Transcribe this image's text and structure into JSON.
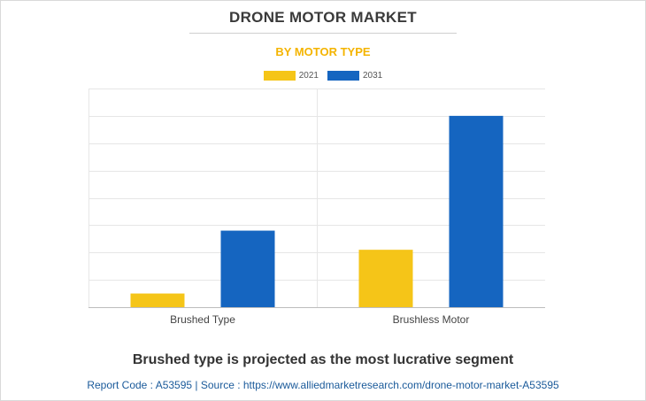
{
  "header": {
    "title": "DRONE MOTOR MARKET",
    "subtitle": "BY MOTOR TYPE"
  },
  "legend": {
    "items": [
      {
        "label": "2021",
        "color": "#f5c518"
      },
      {
        "label": "2031",
        "color": "#1565c0"
      }
    ]
  },
  "chart_data": {
    "type": "bar",
    "title": "DRONE MOTOR MARKET",
    "subtitle": "BY MOTOR TYPE",
    "categories": [
      "Brushed Type",
      "Brushless Motor"
    ],
    "series": [
      {
        "name": "2021",
        "color": "#f5c518",
        "values": [
          0.5,
          2.1
        ]
      },
      {
        "name": "2031",
        "color": "#1565c0",
        "values": [
          2.8,
          7.0
        ]
      }
    ],
    "ylim": [
      0,
      8
    ],
    "grid": true,
    "legend_position": "top-center",
    "xlabel": "",
    "ylabel": ""
  },
  "footer": {
    "caption": "Brushed type is projected as the most lucrative segment",
    "source": "Report Code : A53595  |  Source : https://www.alliedmarketresearch.com/drone-motor-market-A53595"
  }
}
